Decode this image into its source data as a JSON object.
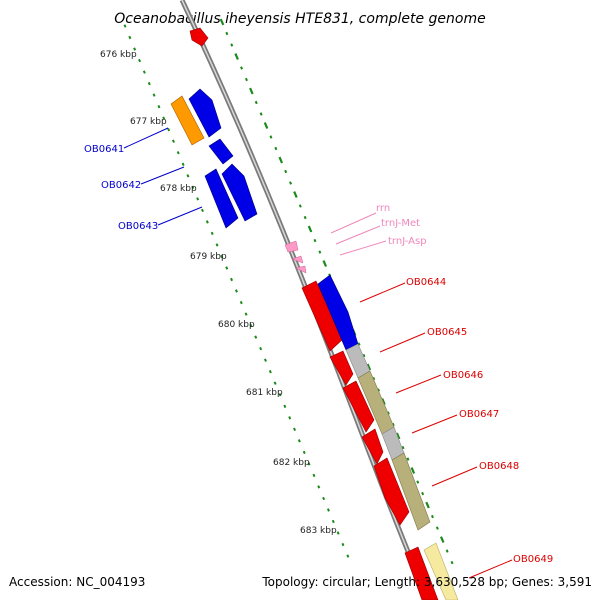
{
  "title": "Oceanobacillus iheyensis HTE831, complete genome",
  "ticks": [
    "676 kbp",
    "677 kbp",
    "678 kbp",
    "679 kbp",
    "680 kbp",
    "681 kbp",
    "682 kbp",
    "683 kbp"
  ],
  "features": {
    "rrn": "rrn",
    "trnj_met": "trnJ-Met",
    "trnj_asp": "trnJ-Asp"
  },
  "genes_left": [
    "OB0641",
    "OB0642",
    "OB0643"
  ],
  "genes_right": [
    "OB0644",
    "OB0645",
    "OB0646",
    "OB0647",
    "OB0648",
    "OB0649"
  ],
  "footer": {
    "accession": "Accession: NC_004193",
    "topology": "Topology: circular; Length: 3,630,528 bp; Genes: 3,591"
  },
  "colors": {
    "forward_cds": "#0000e6",
    "reverse_cds": "#ee0000",
    "rna": "#ff9ac8",
    "orange": "#ff9900",
    "olive": "#b8b07a",
    "grey": "#bbbbbb",
    "yellow": "#f5eaa0",
    "ticks": "#1a8a1a",
    "left_label": "#0000cc",
    "right_label": "#dd0000",
    "rna_label": "#ee88bb"
  }
}
